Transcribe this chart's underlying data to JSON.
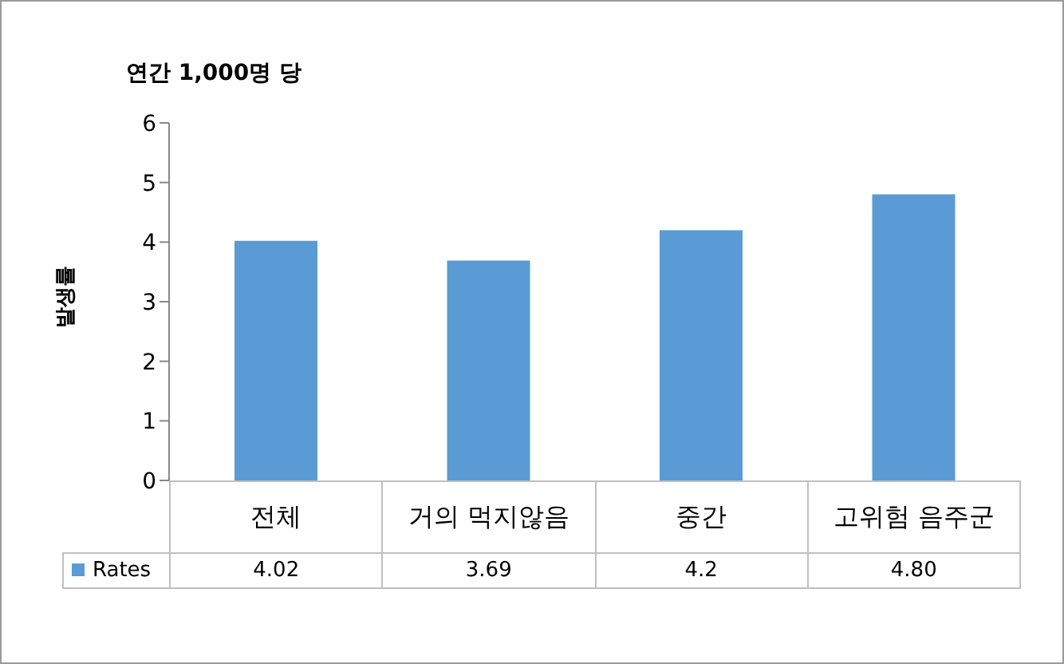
{
  "chart_data": {
    "type": "bar",
    "title": "연간 1,000명 당",
    "ylabel": "발생률",
    "categories": [
      "전체",
      "거의 먹지않음",
      "중간",
      "고위험 음주군"
    ],
    "series": [
      {
        "name": "Rates",
        "color": "#5b9bd5",
        "values": [
          4.02,
          3.69,
          4.2,
          4.8
        ],
        "value_labels": [
          "4.02",
          "3.69",
          "4.2",
          "4.80"
        ]
      }
    ],
    "ylim": [
      0,
      6
    ],
    "yticks": [
      0,
      1,
      2,
      3,
      4,
      5,
      6
    ],
    "legend": "bottom"
  }
}
